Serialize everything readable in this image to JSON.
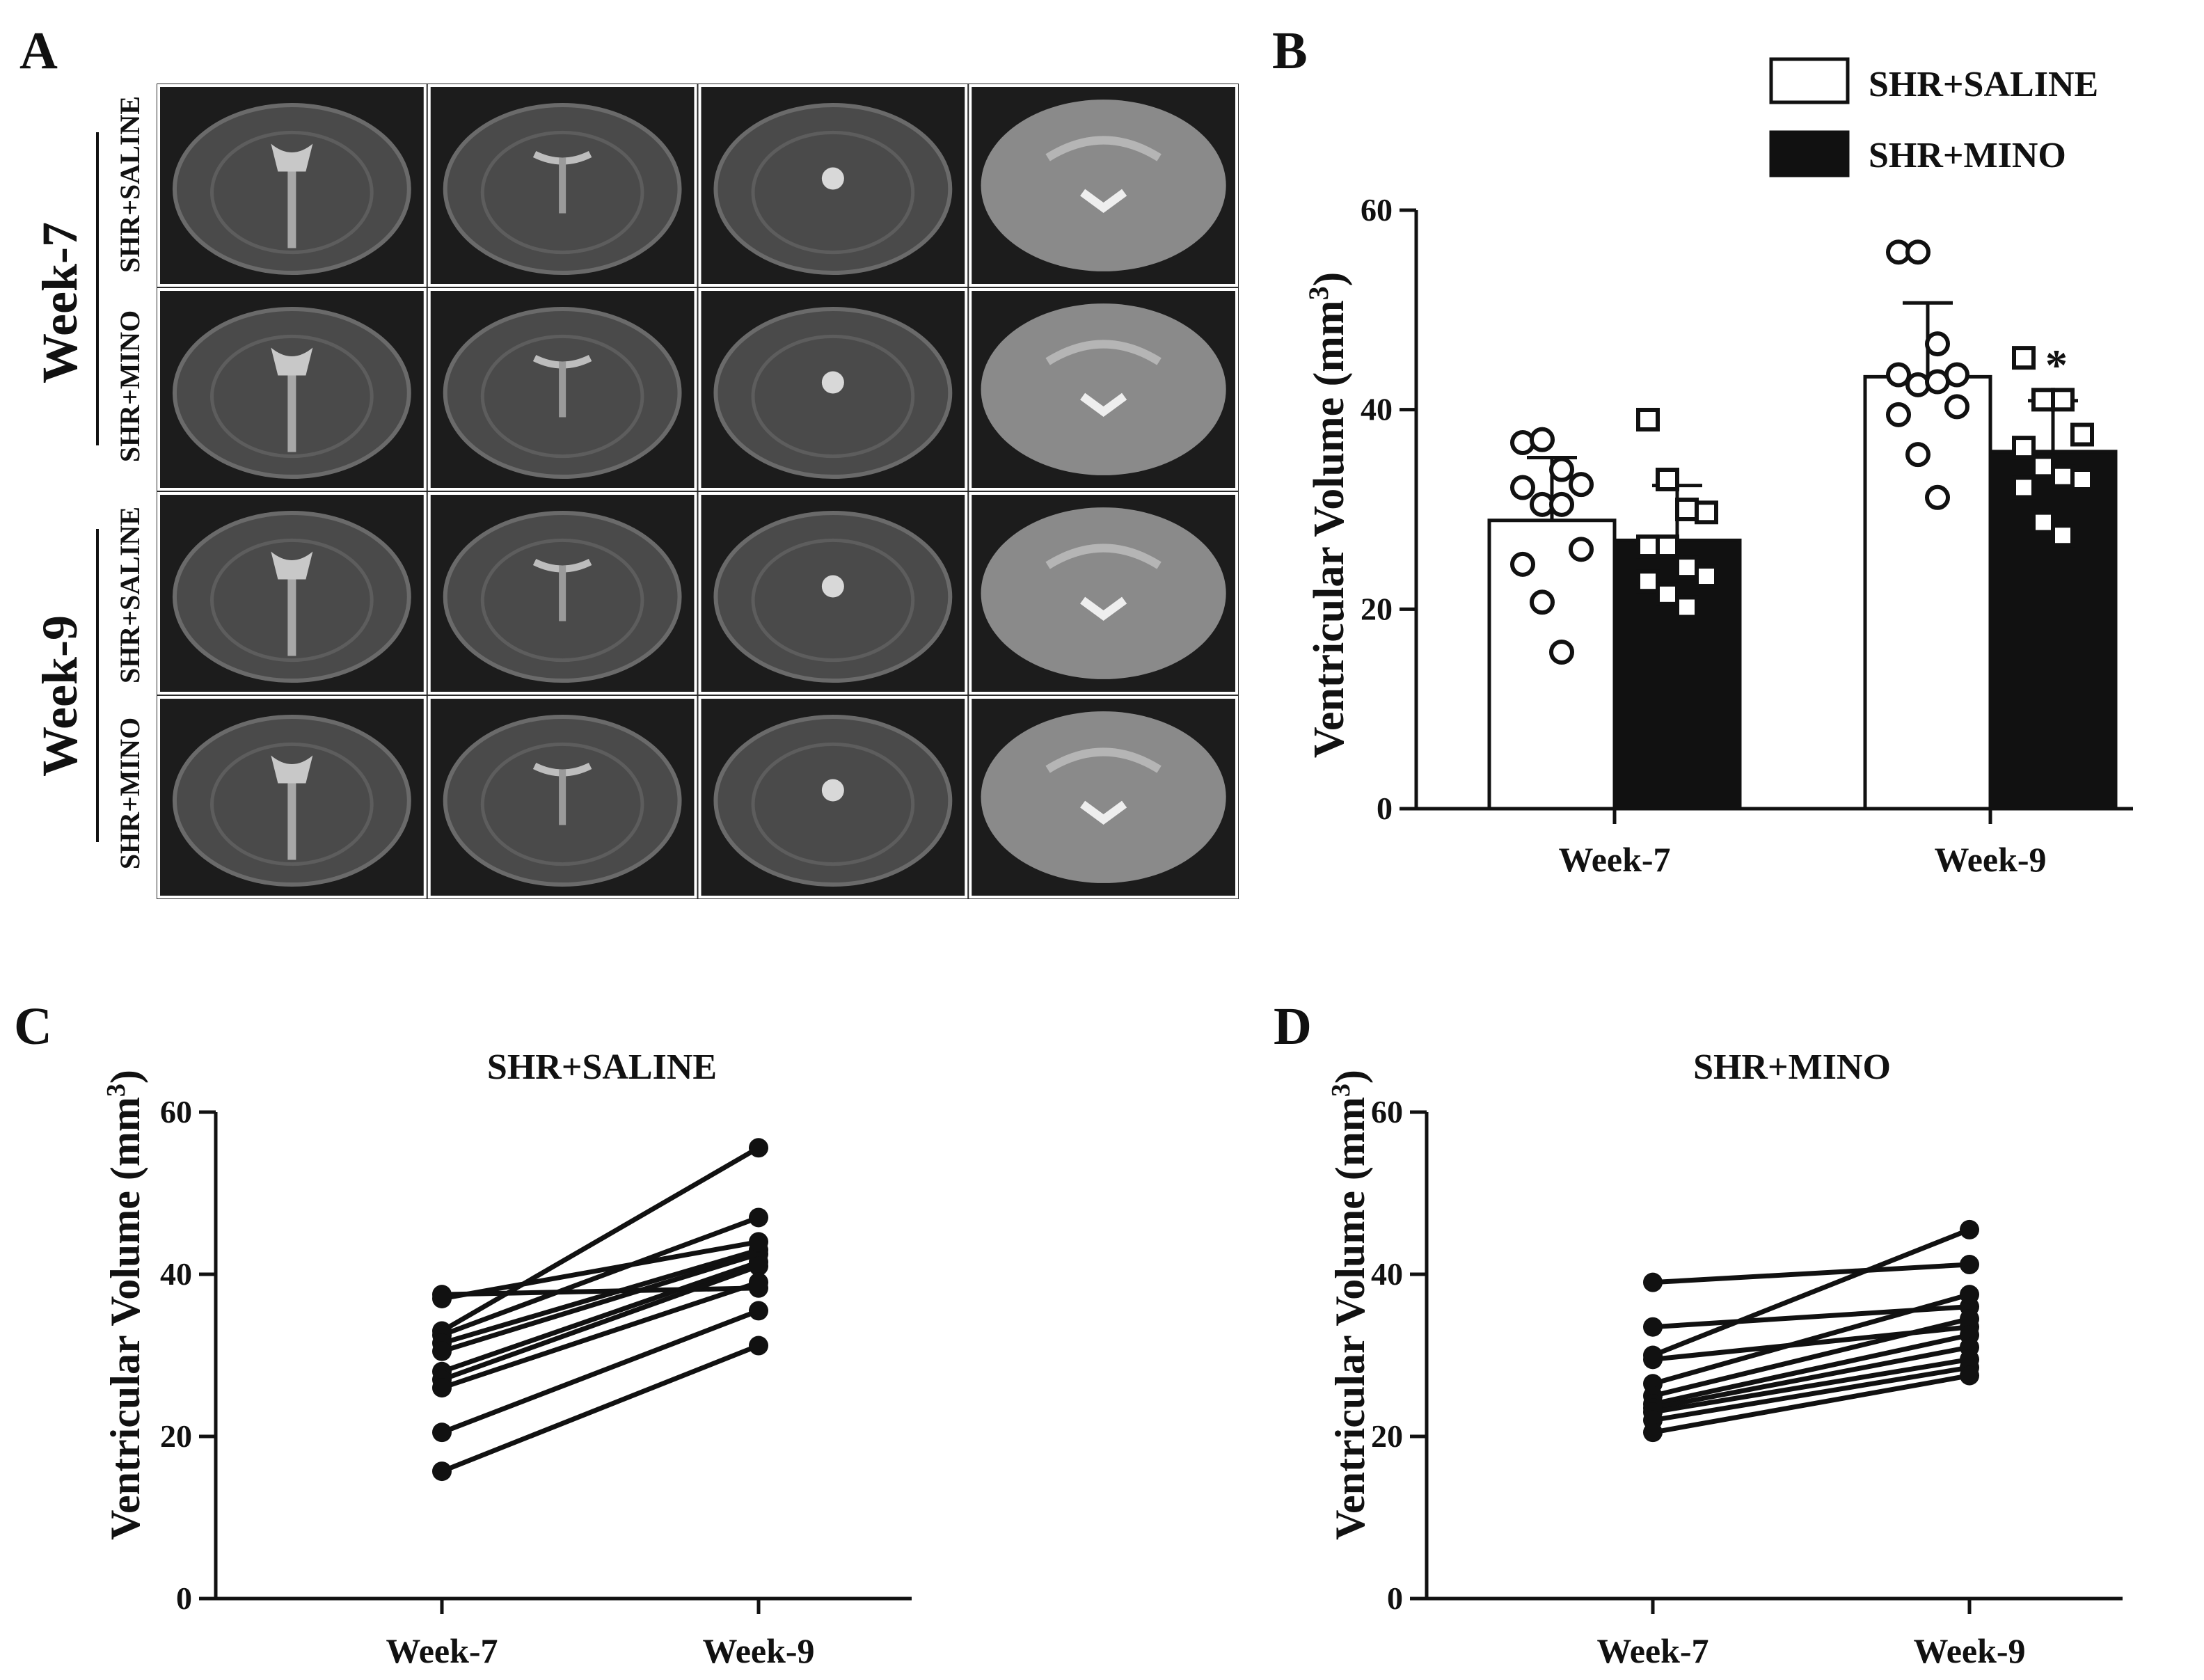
{
  "panels": {
    "A": "A",
    "B": "B",
    "C": "C",
    "D": "D"
  },
  "panel_a": {
    "week_labels": [
      "Week-7",
      "Week-9"
    ],
    "group_labels": [
      "SHR+SALINE",
      "SHR+MINO",
      "SHR+SALINE",
      "SHR+MINO"
    ]
  },
  "chart_data": [
    {
      "panel": "B",
      "type": "bar",
      "categories": [
        "Week-7",
        "Week-9"
      ],
      "series": [
        {
          "name": "SHR+SALINE",
          "fill": "#ffffff",
          "values": [
            28.9,
            43.3
          ],
          "sd_upper": [
            35.2,
            50.7
          ],
          "points": [
            [
              36.7,
              37.0,
              34.0,
              32.5,
              32.2,
              30.5,
              30.5,
              26.0,
              24.5,
              20.7,
              15.7
            ],
            [
              55.8,
              55.8,
              46.6,
              43.5,
              43.5,
              42.5,
              42.8,
              40.3,
              39.5,
              35.5,
              31.2
            ]
          ]
        },
        {
          "name": "SHR+MINO",
          "fill": "#111111",
          "values": [
            26.9,
            35.8
          ],
          "sd_upper": [
            32.4,
            40.9
          ],
          "points": [
            [
              39.0,
              33.0,
              30.0,
              29.7,
              26.3,
              26.3,
              24.2,
              23.3,
              22.8,
              21.5,
              20.2
            ],
            [
              45.2,
              41.0,
              41.0,
              37.5,
              36.2,
              34.3,
              33.3,
              33.0,
              32.2,
              28.7,
              27.4
            ]
          ]
        }
      ],
      "significance": [
        "",
        "*"
      ],
      "ylabel": "Ventricular Volume (mm",
      "ylabel_sup": "3",
      "ylabel_close": ")",
      "ylim": [
        0,
        60
      ],
      "yticks": [
        0,
        20,
        40,
        60
      ],
      "legend": "top-right"
    },
    {
      "panel": "C",
      "type": "line",
      "title": "SHR+SALINE",
      "categories": [
        "Week-7",
        "Week-9"
      ],
      "pairs": [
        [
          37.5,
          38.3
        ],
        [
          33.0,
          55.6
        ],
        [
          32.5,
          47.0
        ],
        [
          31.5,
          43.0
        ],
        [
          30.5,
          42.5
        ],
        [
          28.0,
          41.5
        ],
        [
          27.0,
          41.0
        ],
        [
          26.0,
          39.0
        ],
        [
          37.0,
          44.0
        ],
        [
          20.5,
          35.5
        ],
        [
          15.7,
          31.2
        ]
      ],
      "ylabel": "Ventricular Volume (mm",
      "ylabel_sup": "3",
      "ylabel_close": ")",
      "ylim": [
        0,
        60
      ],
      "yticks": [
        0,
        20,
        40,
        60
      ]
    },
    {
      "panel": "D",
      "type": "line",
      "title": "SHR+MINO",
      "categories": [
        "Week-7",
        "Week-9"
      ],
      "pairs": [
        [
          39.0,
          41.2
        ],
        [
          33.5,
          36.0
        ],
        [
          30.0,
          45.5
        ],
        [
          29.5,
          33.5
        ],
        [
          26.5,
          37.5
        ],
        [
          25.0,
          34.5
        ],
        [
          24.0,
          32.5
        ],
        [
          23.5,
          31.0
        ],
        [
          23.0,
          29.5
        ],
        [
          22.0,
          28.5
        ],
        [
          20.5,
          27.5
        ]
      ],
      "ylabel": "Ventricular Volume (mm",
      "ylabel_sup": "3",
      "ylabel_close": ")",
      "ylim": [
        0,
        60
      ],
      "yticks": [
        0,
        20,
        40,
        60
      ]
    }
  ]
}
